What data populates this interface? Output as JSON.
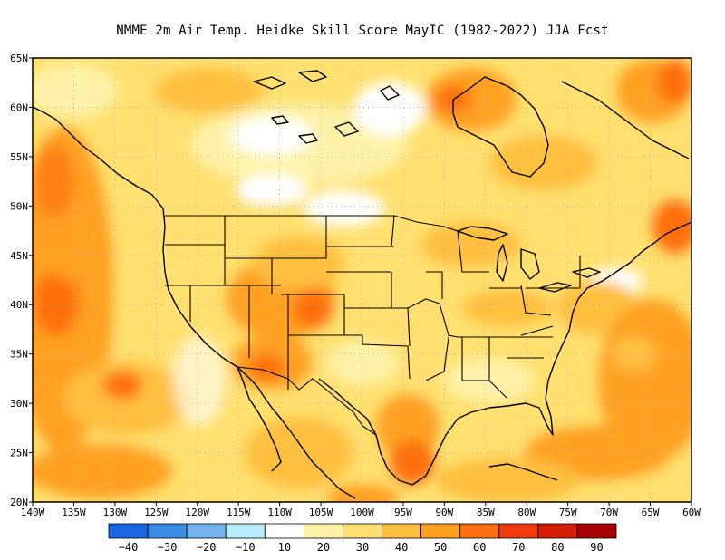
{
  "title": "NMME  2m Air Temp. Heidke Skill Score MayIC (1982-2022) JJA Fcst",
  "lat_labels": [
    "65N",
    "60N",
    "55N",
    "50N",
    "45N",
    "40N",
    "35N",
    "30N",
    "25N",
    "20N"
  ],
  "lon_labels": [
    "140W",
    "135W",
    "130W",
    "125W",
    "120W",
    "115W",
    "110W",
    "105W",
    "100W",
    "95W",
    "90W",
    "85W",
    "80W",
    "75W",
    "70W",
    "65W",
    "60W"
  ],
  "colorbar": {
    "labels": [
      "−40",
      "−30",
      "−20",
      "−10",
      "10",
      "20",
      "30",
      "40",
      "50",
      "60",
      "70",
      "80",
      "90"
    ],
    "colors": [
      "#1a66e6",
      "#3c8ce6",
      "#76b4f0",
      "#b8ecf8",
      "#ffffff",
      "#fff2a8",
      "#ffe070",
      "#ffc040",
      "#ffa020",
      "#ff7010",
      "#f03c0c",
      "#d41e06",
      "#a80000"
    ]
  },
  "colors": {
    "land_border": "#000000",
    "grid": "#b0b0b0"
  },
  "chart_data": {
    "type": "heatmap",
    "variable": "Heidke Skill Score",
    "lon_range": [
      -140,
      -60
    ],
    "lat_range": [
      20,
      65
    ],
    "color_levels": [
      -40,
      -30,
      -20,
      -10,
      10,
      20,
      30,
      40,
      50,
      60,
      70,
      80,
      90
    ]
  }
}
